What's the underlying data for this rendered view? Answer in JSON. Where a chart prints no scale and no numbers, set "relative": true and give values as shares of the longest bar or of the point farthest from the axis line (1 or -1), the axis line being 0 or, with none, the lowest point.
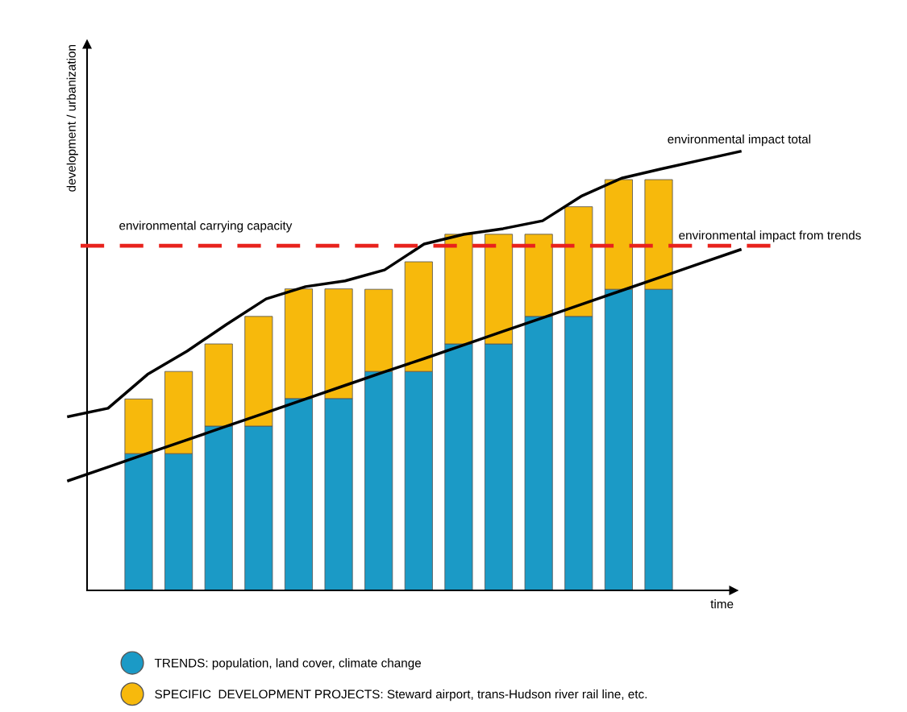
{
  "chart_data": [
    {
      "type": "bar",
      "stacked": true,
      "relative": true,
      "xlabel": "time",
      "ylabel": "development / urbanization",
      "categories": [
        null,
        null,
        null,
        null,
        null,
        null,
        null,
        null,
        null,
        null,
        null,
        null,
        null,
        null
      ],
      "series": [
        {
          "name": "TRENDS: population, land cover, climate change",
          "color": "#1b9ac6",
          "values": [
            0.333,
            0.333,
            0.4,
            0.4,
            0.467,
            0.467,
            0.533,
            0.533,
            0.6,
            0.6,
            0.667,
            0.667,
            0.733,
            0.733
          ]
        },
        {
          "name": "SPECIFIC  DEVELOPMENT PROJECTS: Steward airport, trans-Hudson river rail line, etc.",
          "color": "#f7b90c",
          "values": [
            0.133,
            0.2,
            0.2,
            0.267,
            0.267,
            0.267,
            0.2,
            0.267,
            0.267,
            0.267,
            0.2,
            0.267,
            0.267,
            0.267
          ]
        }
      ],
      "legend": "bottom"
    },
    {
      "type": "line",
      "relative": true,
      "categories": [
        null,
        null,
        null,
        null,
        null,
        null,
        null,
        null,
        null,
        null,
        null,
        null,
        null,
        null,
        null,
        null,
        null,
        null
      ],
      "series": [
        {
          "name": "environmental impact total",
          "color": "#000000",
          "values": [
            0.396,
            0.415,
            0.492,
            0.545,
            0.606,
            0.664,
            0.692,
            0.705,
            0.73,
            0.789,
            0.811,
            0.824,
            0.842,
            0.899,
            0.939,
            0.96,
            0.98,
            1.0
          ]
        },
        {
          "name": "environmental impact from trends",
          "color": "#000000",
          "values": [
            0.25,
            0.281,
            0.312,
            0.343,
            0.374,
            0.405,
            0.436,
            0.467,
            0.498,
            0.528,
            0.559,
            0.59,
            0.621,
            0.652,
            0.683,
            0.714,
            0.745,
            0.776
          ]
        }
      ],
      "ref_lines": [
        {
          "axis": "y",
          "value": 0.785,
          "label": "environmental carrying capacity",
          "color": "#e8221c",
          "line_style": "dashed"
        }
      ]
    }
  ]
}
